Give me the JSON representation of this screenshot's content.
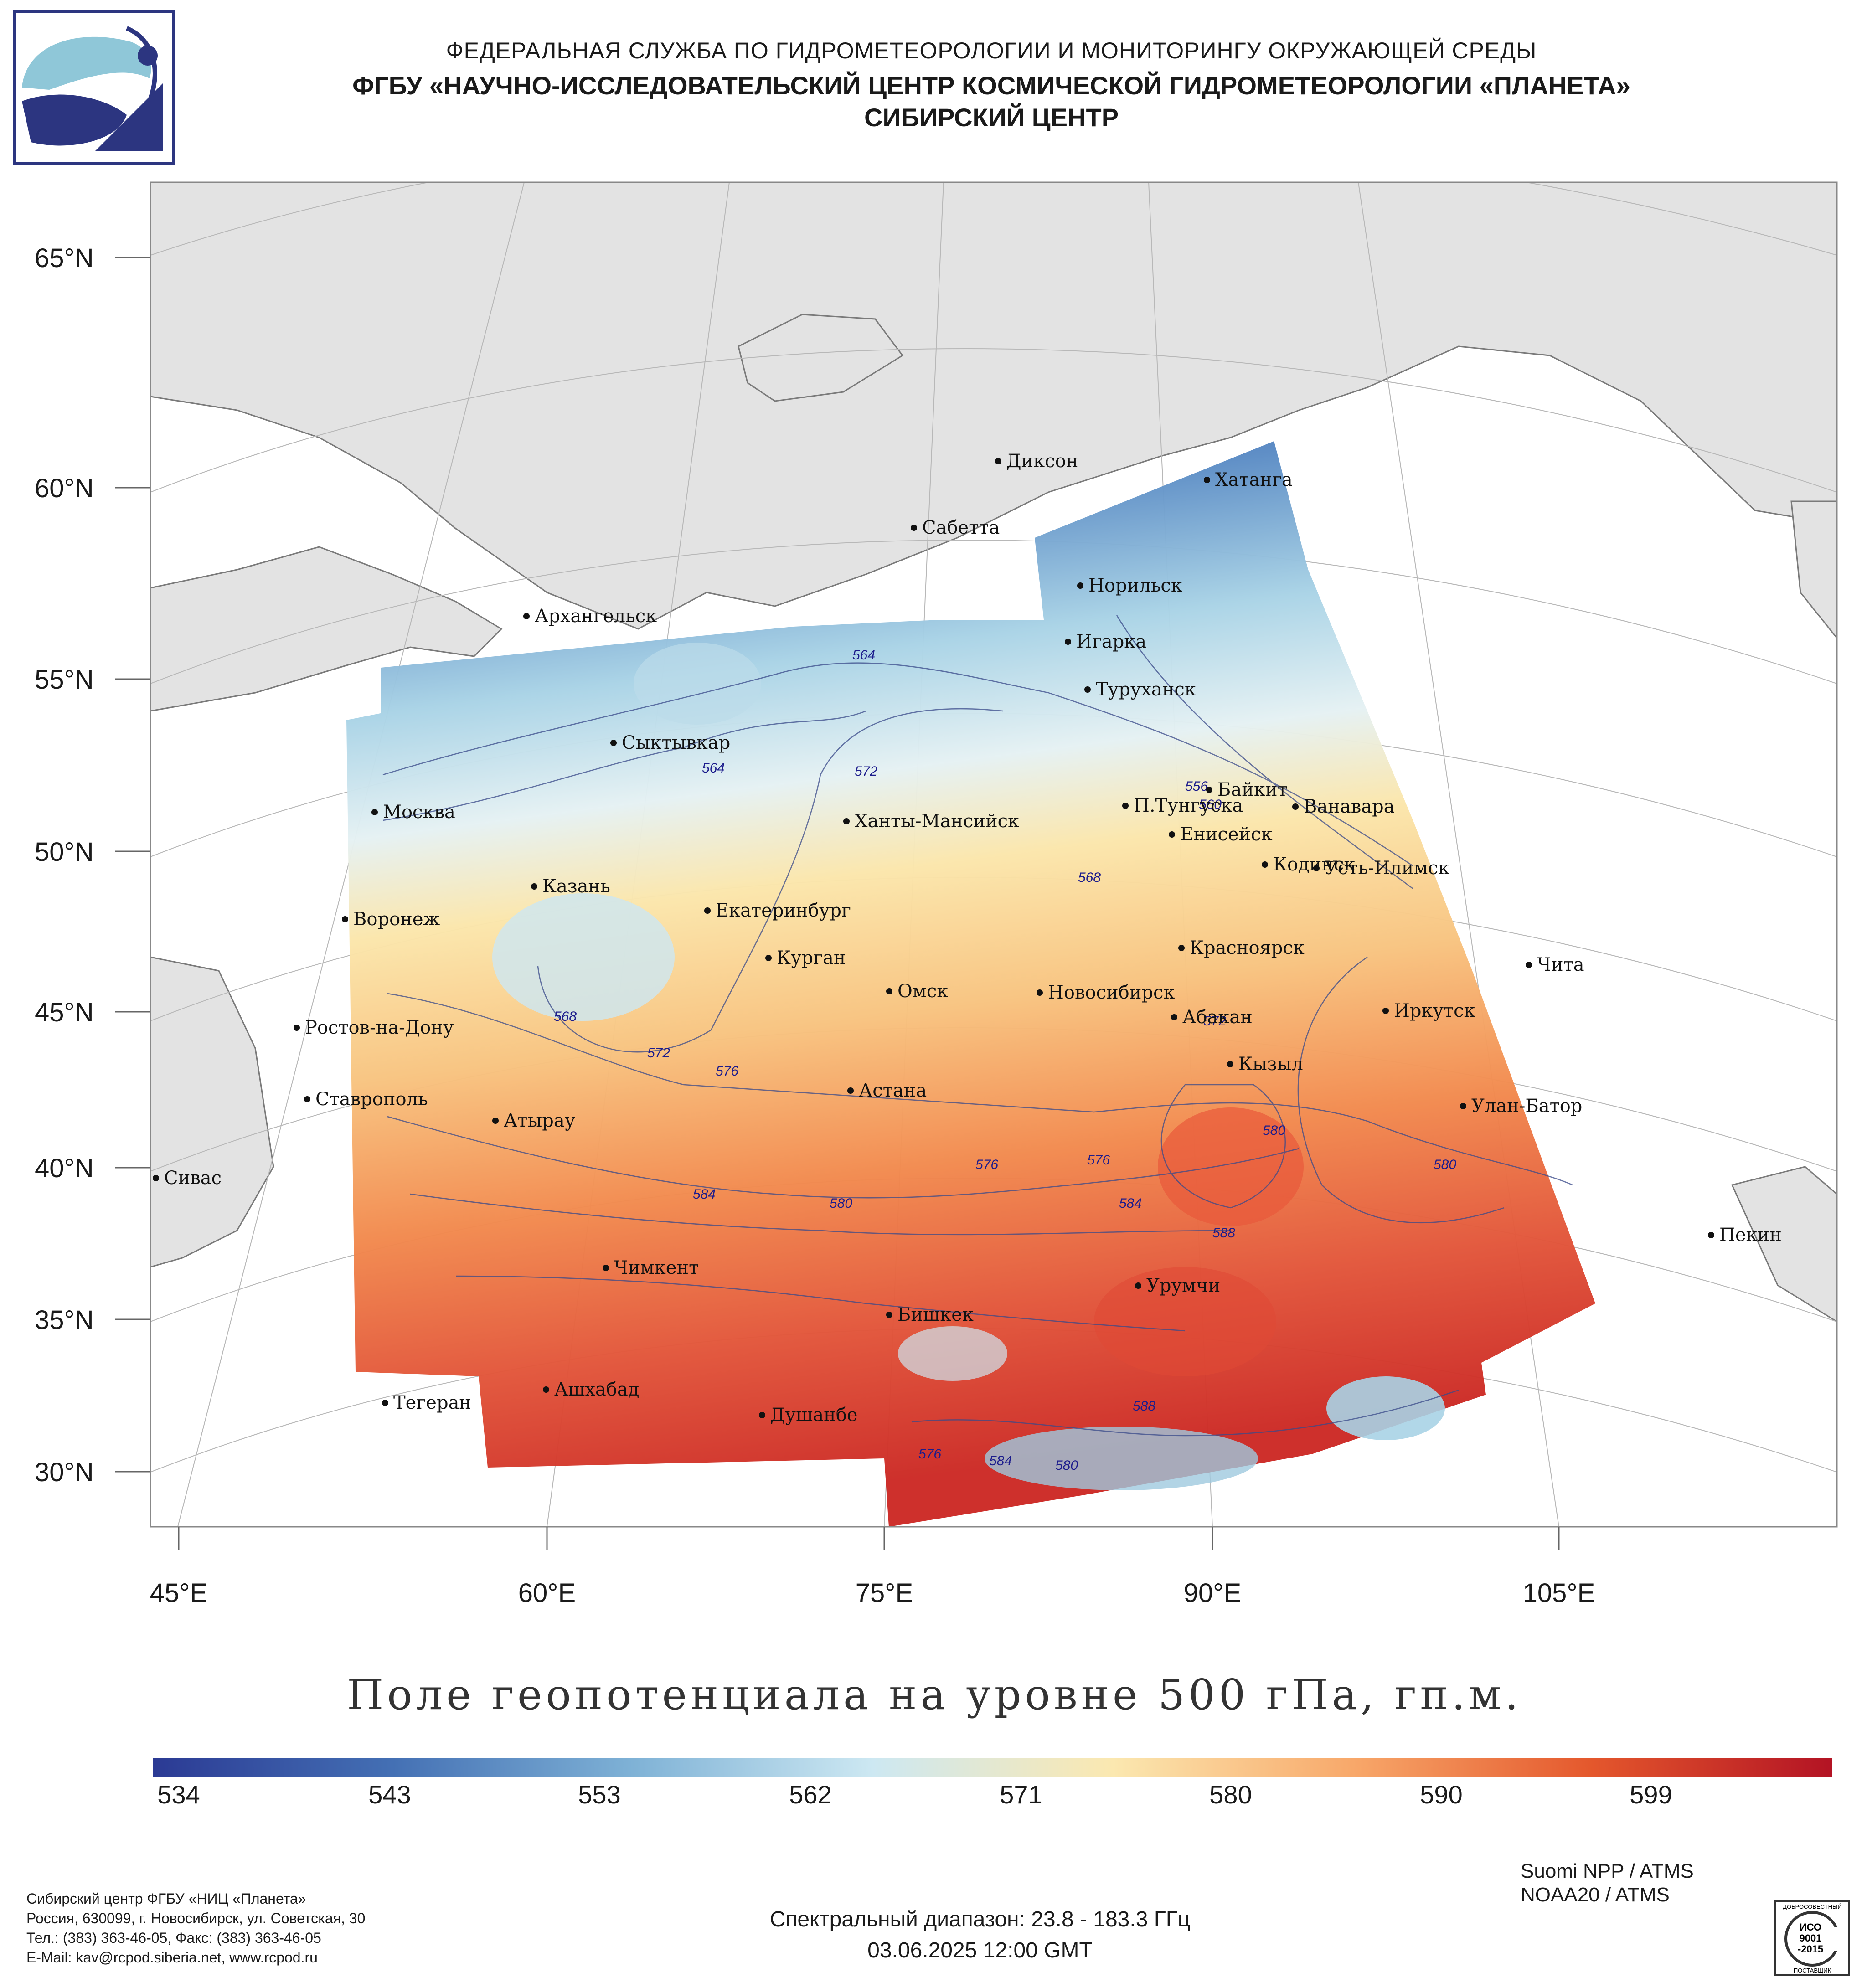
{
  "header": {
    "line1": "ФЕДЕРАЛЬНАЯ СЛУЖБА ПО ГИДРОМЕТЕОРОЛОГИИ И МОНИТОРИНГУ ОКРУЖАЮЩЕЙ СРЕДЫ",
    "line2": "ФГБУ «НАУЧНО-ИССЛЕДОВАТЕЛЬСКИЙ ЦЕНТР КОСМИЧЕСКОЙ ГИДРОМЕТЕОРОЛОГИИ «ПЛАНЕТА»",
    "line3": "СИБИРСКИЙ ЦЕНТР"
  },
  "map": {
    "latitude_labels": [
      "65°N",
      "60°N",
      "55°N",
      "50°N",
      "45°N",
      "40°N",
      "35°N",
      "30°N"
    ],
    "longitude_labels": [
      "45°E",
      "60°E",
      "75°E",
      "90°E",
      "105°E"
    ],
    "cities": [
      "Диксон",
      "Хатанга",
      "Сабетта",
      "Норильск",
      "Архангельск",
      "Игарка",
      "Туруханск",
      "Сыктывкар",
      "Байкит",
      "П.Тунгуска",
      "Ванавара",
      "Москва",
      "Ханты-Мансийск",
      "Енисейск",
      "Кодинск",
      "Усть-Илимск",
      "Казань",
      "Екатеринбург",
      "Воронеж",
      "Красноярск",
      "Курган",
      "Чита",
      "Омск",
      "Новосибирск",
      "Иркутск",
      "Абакан",
      "Ростов-на-Дону",
      "Кызыл",
      "Астана",
      "Ставрополь",
      "Улан-Батор",
      "Атырау",
      "Сивас",
      "Пекин",
      "Чимкент",
      "Урумчи",
      "Бишкек",
      "Ашхабад",
      "Тегеран",
      "Душанбе"
    ],
    "contour_labels": [
      "564",
      "564",
      "572",
      "556",
      "560",
      "568",
      "572",
      "568",
      "572",
      "576",
      "576",
      "576",
      "580",
      "580",
      "580",
      "584",
      "584",
      "588",
      "588",
      "576",
      "584",
      "580"
    ],
    "colors": {
      "land": "#e3e3e3",
      "water": "#ffffff",
      "coast": "#7a7a7a",
      "contour": "#3a4a8a"
    }
  },
  "title": "Поле геопотенциала на уровне 500 гПа, гп.м.",
  "colorbar": {
    "labels": [
      "534",
      "543",
      "553",
      "562",
      "571",
      "580",
      "590",
      "599"
    ],
    "colors": [
      "#2b3a94",
      "#4470b4",
      "#7fb2d6",
      "#cde8f2",
      "#fbe8b0",
      "#f8a86a",
      "#e4572c",
      "#b31324"
    ]
  },
  "satellites": [
    "Suomi NPP / ATMS",
    "NOAA20 / ATMS"
  ],
  "spectral_range": "Спектральный диапазон: 23.8 - 183.3 ГГц",
  "datetime": "03.06.2025 12:00 GMT",
  "contacts": [
    "Сибирский центр ФГБУ «НИЦ «Планета»",
    "Россия, 630099, г. Новосибирск, ул. Советская, 30",
    "Тел.: (383) 363-46-05, Факс: (383) 363-46-05",
    "E-Mail: kav@rcpod.siberia.net, www.rcpod.ru"
  ],
  "iso_badge": [
    "ДОБРОСОВЕСТНЫЙ",
    "ИСО",
    "9001",
    "-2015",
    "ПОСТАВЩИК"
  ]
}
